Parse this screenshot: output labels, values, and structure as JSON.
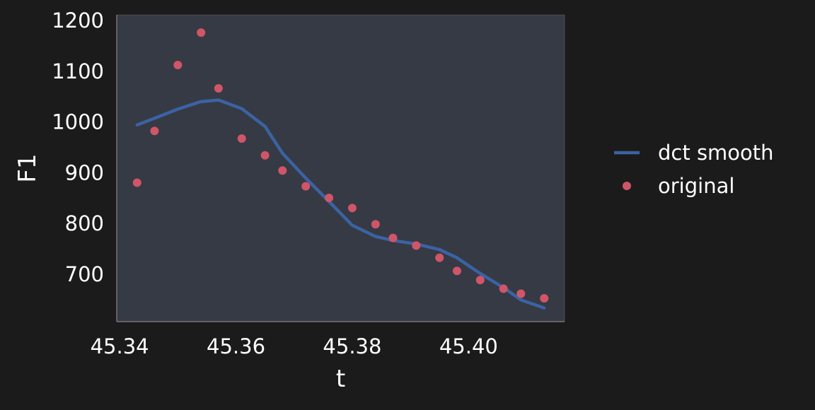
{
  "colors": {
    "background": "#1b1b1b",
    "plot_background": "#363a44",
    "axis": "#9a9a9a",
    "text": "#ffffff",
    "smooth_line": "#3b62a3",
    "original_points": "#d05568"
  },
  "chart_data": {
    "type": "line",
    "title": "",
    "xlabel": "t",
    "ylabel": "F1",
    "xlim": [
      45.3395,
      45.4165
    ],
    "ylim": [
      605,
      1210
    ],
    "x_ticks": [
      45.34,
      45.36,
      45.38,
      45.4
    ],
    "x_tick_labels": [
      "45.34",
      "45.36",
      "45.38",
      "45.40"
    ],
    "y_ticks": [
      700,
      800,
      900,
      1000,
      1100,
      1200
    ],
    "y_tick_labels": [
      "700",
      "800",
      "900",
      "1000",
      "1100",
      "1200"
    ],
    "grid": false,
    "legend_position": "right",
    "series": [
      {
        "name": "dct smooth",
        "kind": "line",
        "color": "#3b62a3",
        "x": [
          45.343,
          45.346,
          45.35,
          45.354,
          45.357,
          45.361,
          45.365,
          45.368,
          45.372,
          45.376,
          45.38,
          45.384,
          45.387,
          45.391,
          45.395,
          45.398,
          45.402,
          45.406,
          45.409,
          45.413
        ],
        "y": [
          993,
          1006,
          1024,
          1039,
          1042,
          1025,
          990,
          937,
          888,
          842,
          795,
          773,
          765,
          758,
          747,
          731,
          700,
          672,
          648,
          632
        ]
      },
      {
        "name": "original",
        "kind": "scatter",
        "color": "#d05568",
        "x": [
          45.343,
          45.346,
          45.35,
          45.354,
          45.357,
          45.361,
          45.365,
          45.368,
          45.372,
          45.376,
          45.38,
          45.384,
          45.387,
          45.391,
          45.395,
          45.398,
          45.402,
          45.406,
          45.409,
          45.413
        ],
        "y": [
          879,
          981,
          1111,
          1175,
          1065,
          966,
          933,
          903,
          872,
          849,
          829,
          797,
          770,
          755,
          731,
          705,
          687,
          670,
          660,
          651
        ]
      }
    ]
  }
}
